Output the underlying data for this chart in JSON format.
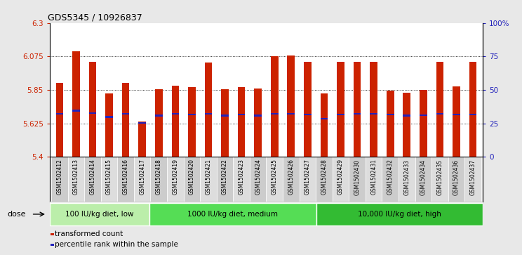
{
  "title": "GDS5345 / 10926837",
  "categories": [
    "GSM1502412",
    "GSM1502413",
    "GSM1502414",
    "GSM1502415",
    "GSM1502416",
    "GSM1502417",
    "GSM1502418",
    "GSM1502419",
    "GSM1502420",
    "GSM1502421",
    "GSM1502422",
    "GSM1502423",
    "GSM1502424",
    "GSM1502425",
    "GSM1502426",
    "GSM1502427",
    "GSM1502428",
    "GSM1502429",
    "GSM1502430",
    "GSM1502431",
    "GSM1502432",
    "GSM1502433",
    "GSM1502434",
    "GSM1502435",
    "GSM1502436",
    "GSM1502437"
  ],
  "bar_values": [
    5.895,
    6.11,
    6.04,
    5.825,
    5.895,
    5.635,
    5.855,
    5.88,
    5.87,
    6.035,
    5.855,
    5.87,
    5.86,
    6.075,
    6.08,
    6.04,
    5.825,
    6.04,
    6.04,
    6.04,
    5.845,
    5.83,
    5.85,
    6.04,
    5.875,
    6.04
  ],
  "blue_values": [
    5.69,
    5.71,
    5.695,
    5.668,
    5.69,
    5.628,
    5.678,
    5.688,
    5.683,
    5.688,
    5.678,
    5.683,
    5.678,
    5.688,
    5.688,
    5.685,
    5.655,
    5.685,
    5.688,
    5.688,
    5.683,
    5.678,
    5.68,
    5.688,
    5.683,
    5.685
  ],
  "y_min": 5.4,
  "y_max": 6.3,
  "y_ticks": [
    5.4,
    5.625,
    5.85,
    6.075,
    6.3
  ],
  "y_tick_labels": [
    "5.4",
    "5.625",
    "5.85",
    "6.075",
    "6.3"
  ],
  "right_y_ticks": [
    0,
    25,
    50,
    75,
    100
  ],
  "right_y_tick_labels": [
    "0",
    "25",
    "50",
    "75",
    "100%"
  ],
  "bar_color": "#cc2200",
  "blue_color": "#2222bb",
  "background_color": "#e8e8e8",
  "plot_bg_color": "#ffffff",
  "xtick_bg_color": "#d0d0d0",
  "groups": [
    {
      "label": "100 IU/kg diet, low",
      "start": 0,
      "end": 6,
      "color": "#bbeeaa"
    },
    {
      "label": "1000 IU/kg diet, medium",
      "start": 6,
      "end": 16,
      "color": "#55dd55"
    },
    {
      "label": "10,000 IU/kg diet, high",
      "start": 16,
      "end": 26,
      "color": "#33bb33"
    }
  ],
  "dose_label": "dose",
  "legend_items": [
    {
      "label": "transformed count",
      "color": "#cc2200"
    },
    {
      "label": "percentile rank within the sample",
      "color": "#2222bb"
    }
  ]
}
